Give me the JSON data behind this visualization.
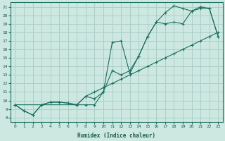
{
  "xlabel": "Humidex (Indice chaleur)",
  "xlim": [
    -0.5,
    23.5
  ],
  "ylim": [
    7.5,
    21.5
  ],
  "yticks": [
    8,
    9,
    10,
    11,
    12,
    13,
    14,
    15,
    16,
    17,
    18,
    19,
    20,
    21
  ],
  "xticks": [
    0,
    1,
    2,
    3,
    4,
    5,
    6,
    7,
    8,
    9,
    10,
    11,
    12,
    13,
    14,
    15,
    16,
    17,
    18,
    19,
    20,
    21,
    22,
    23
  ],
  "bg_color": "#cce8e0",
  "grid_color": "#aacfc8",
  "line_color": "#1a7060",
  "line1_x": [
    0,
    1,
    2,
    3,
    4,
    5,
    6,
    7,
    8,
    9,
    10,
    11,
    12,
    13,
    14,
    15,
    16,
    17,
    18,
    19,
    20,
    21,
    22,
    23
  ],
  "line1_y": [
    9.5,
    8.8,
    8.3,
    9.5,
    9.8,
    9.8,
    9.7,
    9.5,
    9.5,
    9.5,
    11.0,
    13.5,
    13.0,
    13.5,
    15.2,
    17.5,
    19.2,
    20.3,
    21.1,
    20.8,
    20.5,
    20.8,
    20.8,
    17.5
  ],
  "line2_x": [
    0,
    1,
    2,
    3,
    4,
    5,
    6,
    7,
    8,
    9,
    10,
    11,
    12,
    13,
    14,
    15,
    16,
    17,
    18,
    19,
    20,
    21,
    22,
    23
  ],
  "line2_y": [
    9.5,
    8.8,
    8.3,
    9.5,
    9.8,
    9.8,
    9.7,
    9.5,
    10.5,
    11.0,
    11.5,
    12.0,
    12.5,
    13.0,
    13.5,
    14.0,
    14.5,
    15.0,
    15.5,
    16.0,
    16.5,
    17.0,
    17.5,
    18.0
  ],
  "line3_x": [
    0,
    7,
    8,
    9,
    10,
    11,
    12,
    13,
    14,
    15,
    16,
    17,
    18,
    19,
    20,
    21,
    22,
    23
  ],
  "line3_y": [
    9.5,
    9.5,
    10.5,
    10.2,
    11.0,
    16.8,
    17.0,
    13.2,
    15.2,
    17.5,
    19.2,
    19.0,
    19.2,
    19.0,
    20.5,
    21.0,
    20.8,
    17.5
  ]
}
